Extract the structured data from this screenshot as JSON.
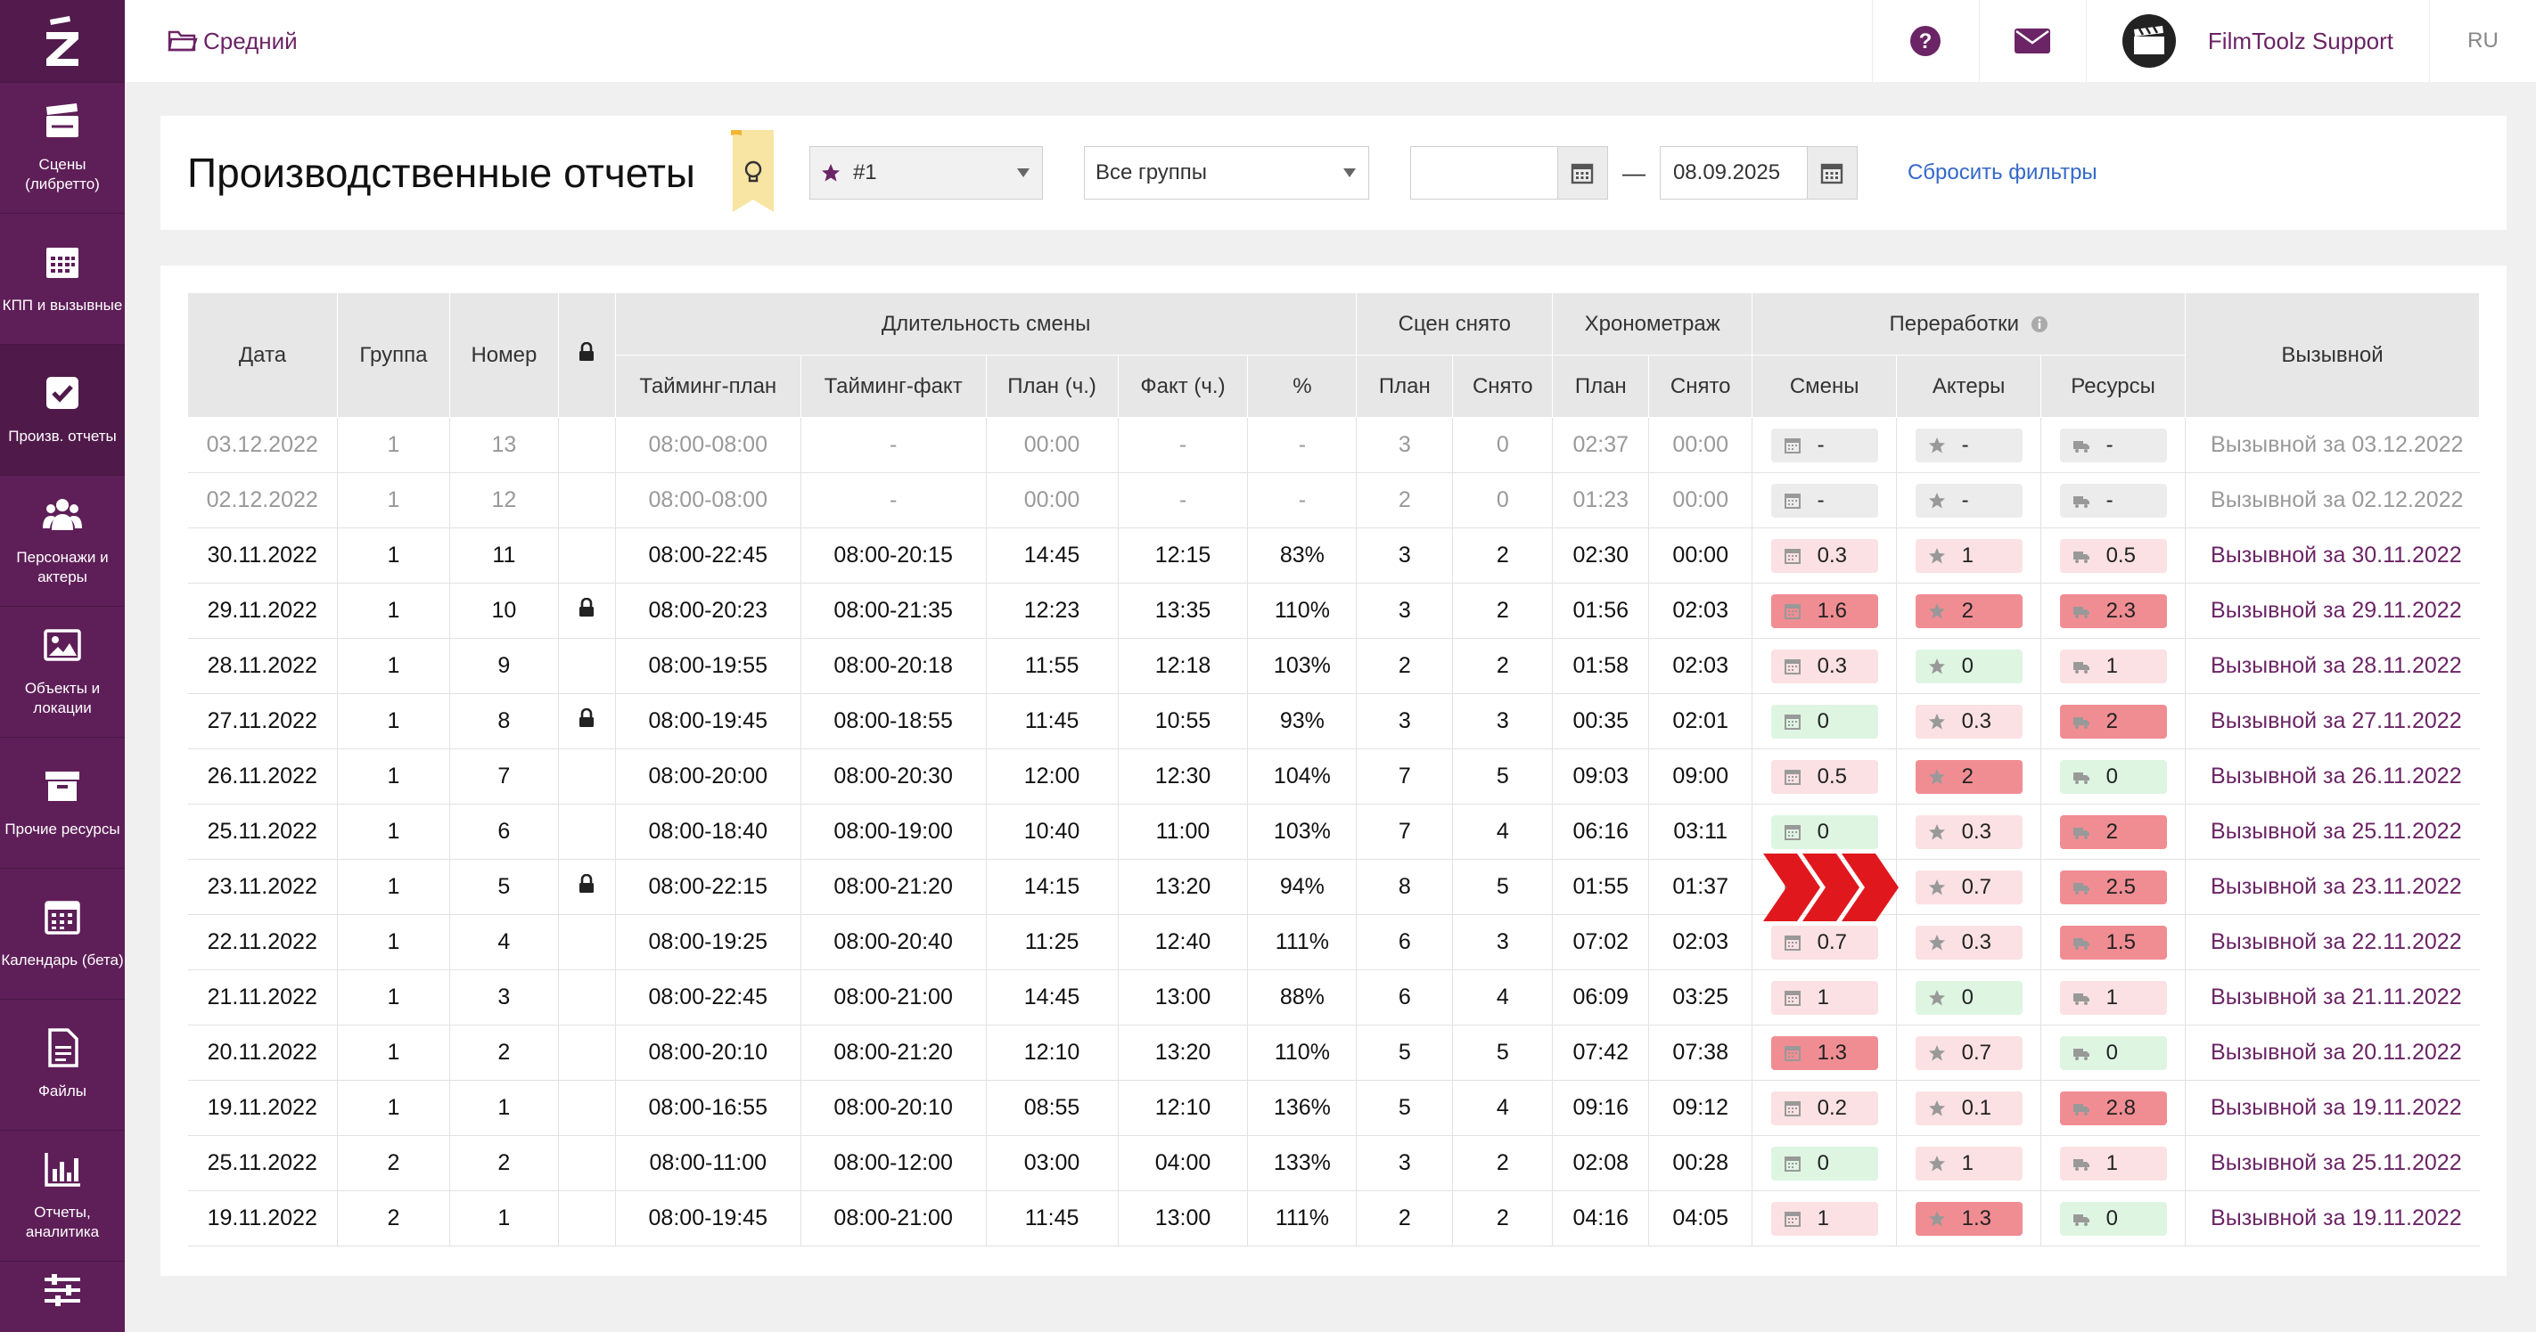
{
  "colors": {
    "brand": "#5e1f58",
    "link": "#6b2465",
    "reset_link": "#3468c9",
    "pill_green": "#def5e2",
    "pill_light_red": "#fbe1e3",
    "pill_red": "#f08d93",
    "pill_gray": "#ececec"
  },
  "sidebar": {
    "logo_icon": "z-logo-icon",
    "items": [
      {
        "label": "Сцены (либретто)",
        "icon": "clapperboard-icon"
      },
      {
        "label": "КПП и вызывные",
        "icon": "calendar-grid-icon"
      },
      {
        "label": "Произв. отчеты",
        "icon": "checkbox-icon",
        "active": true
      },
      {
        "label": "Персонажи и актеры",
        "icon": "people-icon"
      },
      {
        "label": "Объекты и локации",
        "icon": "image-icon"
      },
      {
        "label": "Прочие ресурсы",
        "icon": "box-icon"
      },
      {
        "label": "Календарь (бета)",
        "icon": "calendar-icon"
      },
      {
        "label": "Файлы",
        "icon": "file-icon"
      },
      {
        "label": "Отчеты, аналитика",
        "icon": "bar-chart-icon"
      },
      {
        "label": "",
        "icon": "sliders-icon"
      }
    ]
  },
  "topbar": {
    "crumb": "Средний",
    "user_name": "FilmToolz Support",
    "lang": "RU"
  },
  "header": {
    "title": "Производственные отчеты",
    "select_project": "#1",
    "select_group": "Все группы",
    "date_from": "",
    "date_to": "08.09.2025",
    "dash": "—",
    "reset": "Сбросить фильтры"
  },
  "table": {
    "head1": {
      "date": "Дата",
      "group": "Группа",
      "number": "Номер",
      "shift": "Длительность смены",
      "scenes": "Сцен снято",
      "timing": "Хронометраж",
      "overtime": "Переработки",
      "callsheet": "Вызывной"
    },
    "head2": {
      "plan_timing": "Тайминг-план",
      "fact_timing": "Тайминг-факт",
      "plan_h": "План (ч.)",
      "fact_h": "Факт (ч.)",
      "pct": "%",
      "sc_plan": "План",
      "sc_done": "Снято",
      "tm_plan": "План",
      "tm_done": "Снято",
      "shifts": "Смены",
      "actors": "Актеры",
      "resources": "Ресурсы"
    },
    "rows": [
      {
        "date": "03.12.2022",
        "group": "1",
        "num": "13",
        "lock": false,
        "dim": true,
        "tplan": "08:00-08:00",
        "tfact": "-",
        "hplan": "00:00",
        "hfact": "-",
        "pct": "-",
        "splan": "3",
        "sdone": "0",
        "cplan": "02:37",
        "cdone": "00:00",
        "ot_s": "-",
        "ot_a": "-",
        "ot_r": "-",
        "c_s": "gray",
        "c_a": "gray",
        "c_r": "gray",
        "link": "Вызывной за 03.12.2022"
      },
      {
        "date": "02.12.2022",
        "group": "1",
        "num": "12",
        "lock": false,
        "dim": true,
        "tplan": "08:00-08:00",
        "tfact": "-",
        "hplan": "00:00",
        "hfact": "-",
        "pct": "-",
        "splan": "2",
        "sdone": "0",
        "cplan": "01:23",
        "cdone": "00:00",
        "ot_s": "-",
        "ot_a": "-",
        "ot_r": "-",
        "c_s": "gray",
        "c_a": "gray",
        "c_r": "gray",
        "link": "Вызывной за 02.12.2022"
      },
      {
        "date": "30.11.2022",
        "group": "1",
        "num": "11",
        "lock": false,
        "dim": false,
        "tplan": "08:00-22:45",
        "tfact": "08:00-20:15",
        "hplan": "14:45",
        "hfact": "12:15",
        "pct": "83%",
        "splan": "3",
        "sdone": "2",
        "cplan": "02:30",
        "cdone": "00:00",
        "ot_s": "0.3",
        "ot_a": "1",
        "ot_r": "0.5",
        "c_s": "light",
        "c_a": "light",
        "c_r": "light",
        "link": "Вызывной за 30.11.2022"
      },
      {
        "date": "29.11.2022",
        "group": "1",
        "num": "10",
        "lock": true,
        "dim": false,
        "tplan": "08:00-20:23",
        "tfact": "08:00-21:35",
        "hplan": "12:23",
        "hfact": "13:35",
        "pct": "110%",
        "splan": "3",
        "sdone": "2",
        "cplan": "01:56",
        "cdone": "02:03",
        "ot_s": "1.6",
        "ot_a": "2",
        "ot_r": "2.3",
        "c_s": "red",
        "c_a": "red",
        "c_r": "red",
        "link": "Вызывной за 29.11.2022"
      },
      {
        "date": "28.11.2022",
        "group": "1",
        "num": "9",
        "lock": false,
        "dim": false,
        "tplan": "08:00-19:55",
        "tfact": "08:00-20:18",
        "hplan": "11:55",
        "hfact": "12:18",
        "pct": "103%",
        "splan": "2",
        "sdone": "2",
        "cplan": "01:58",
        "cdone": "02:03",
        "ot_s": "0.3",
        "ot_a": "0",
        "ot_r": "1",
        "c_s": "light",
        "c_a": "green",
        "c_r": "light",
        "link": "Вызывной за 28.11.2022"
      },
      {
        "date": "27.11.2022",
        "group": "1",
        "num": "8",
        "lock": true,
        "dim": false,
        "tplan": "08:00-19:45",
        "tfact": "08:00-18:55",
        "hplan": "11:45",
        "hfact": "10:55",
        "pct": "93%",
        "splan": "3",
        "sdone": "3",
        "cplan": "00:35",
        "cdone": "02:01",
        "ot_s": "0",
        "ot_a": "0.3",
        "ot_r": "2",
        "c_s": "green",
        "c_a": "light",
        "c_r": "red",
        "link": "Вызывной за 27.11.2022"
      },
      {
        "date": "26.11.2022",
        "group": "1",
        "num": "7",
        "lock": false,
        "dim": false,
        "tplan": "08:00-20:00",
        "tfact": "08:00-20:30",
        "hplan": "12:00",
        "hfact": "12:30",
        "pct": "104%",
        "splan": "7",
        "sdone": "5",
        "cplan": "09:03",
        "cdone": "09:00",
        "ot_s": "0.5",
        "ot_a": "2",
        "ot_r": "0",
        "c_s": "light",
        "c_a": "red",
        "c_r": "green",
        "link": "Вызывной за 26.11.2022"
      },
      {
        "date": "25.11.2022",
        "group": "1",
        "num": "6",
        "lock": false,
        "dim": false,
        "tplan": "08:00-18:40",
        "tfact": "08:00-19:00",
        "hplan": "10:40",
        "hfact": "11:00",
        "pct": "103%",
        "splan": "7",
        "sdone": "4",
        "cplan": "06:16",
        "cdone": "03:11",
        "ot_s": "0",
        "ot_a": "0.3",
        "ot_r": "2",
        "c_s": "green",
        "c_a": "light",
        "c_r": "red",
        "link": "Вызывной за 25.11.2022"
      },
      {
        "date": "23.11.2022",
        "group": "1",
        "num": "5",
        "lock": true,
        "dim": false,
        "tplan": "08:00-22:15",
        "tfact": "08:00-21:20",
        "hplan": "14:15",
        "hfact": "13:20",
        "pct": "94%",
        "splan": "8",
        "sdone": "5",
        "cplan": "01:55",
        "cdone": "01:37",
        "ot_s": "",
        "ot_a": "0.7",
        "ot_r": "2.5",
        "c_s": "none",
        "c_a": "light",
        "c_r": "red",
        "link": "Вызывной за 23.11.2022"
      },
      {
        "date": "22.11.2022",
        "group": "1",
        "num": "4",
        "lock": false,
        "dim": false,
        "tplan": "08:00-19:25",
        "tfact": "08:00-20:40",
        "hplan": "11:25",
        "hfact": "12:40",
        "pct": "111%",
        "splan": "6",
        "sdone": "3",
        "cplan": "07:02",
        "cdone": "02:03",
        "ot_s": "0.7",
        "ot_a": "0.3",
        "ot_r": "1.5",
        "c_s": "light",
        "c_a": "light",
        "c_r": "red",
        "link": "Вызывной за 22.11.2022"
      },
      {
        "date": "21.11.2022",
        "group": "1",
        "num": "3",
        "lock": false,
        "dim": false,
        "tplan": "08:00-22:45",
        "tfact": "08:00-21:00",
        "hplan": "14:45",
        "hfact": "13:00",
        "pct": "88%",
        "splan": "6",
        "sdone": "4",
        "cplan": "06:09",
        "cdone": "03:25",
        "ot_s": "1",
        "ot_a": "0",
        "ot_r": "1",
        "c_s": "light",
        "c_a": "green",
        "c_r": "light",
        "link": "Вызывной за 21.11.2022"
      },
      {
        "date": "20.11.2022",
        "group": "1",
        "num": "2",
        "lock": false,
        "dim": false,
        "tplan": "08:00-20:10",
        "tfact": "08:00-21:20",
        "hplan": "12:10",
        "hfact": "13:20",
        "pct": "110%",
        "splan": "5",
        "sdone": "5",
        "cplan": "07:42",
        "cdone": "07:38",
        "ot_s": "1.3",
        "ot_a": "0.7",
        "ot_r": "0",
        "c_s": "red",
        "c_a": "light",
        "c_r": "green",
        "link": "Вызывной за 20.11.2022"
      },
      {
        "date": "19.11.2022",
        "group": "1",
        "num": "1",
        "lock": false,
        "dim": false,
        "tplan": "08:00-16:55",
        "tfact": "08:00-20:10",
        "hplan": "08:55",
        "hfact": "12:10",
        "pct": "136%",
        "splan": "5",
        "sdone": "4",
        "cplan": "09:16",
        "cdone": "09:12",
        "ot_s": "0.2",
        "ot_a": "0.1",
        "ot_r": "2.8",
        "c_s": "light",
        "c_a": "light",
        "c_r": "red",
        "link": "Вызывной за 19.11.2022"
      },
      {
        "date": "25.11.2022",
        "group": "2",
        "num": "2",
        "lock": false,
        "dim": false,
        "tplan": "08:00-11:00",
        "tfact": "08:00-12:00",
        "hplan": "03:00",
        "hfact": "04:00",
        "pct": "133%",
        "splan": "3",
        "sdone": "2",
        "cplan": "02:08",
        "cdone": "00:28",
        "ot_s": "0",
        "ot_a": "1",
        "ot_r": "1",
        "c_s": "green",
        "c_a": "light",
        "c_r": "light",
        "link": "Вызывной за 25.11.2022"
      },
      {
        "date": "19.11.2022",
        "group": "2",
        "num": "1",
        "lock": false,
        "dim": false,
        "tplan": "08:00-19:45",
        "tfact": "08:00-21:00",
        "hplan": "11:45",
        "hfact": "13:00",
        "pct": "111%",
        "splan": "2",
        "sdone": "2",
        "cplan": "04:16",
        "cdone": "04:05",
        "ot_s": "1",
        "ot_a": "1.3",
        "ot_r": "0",
        "c_s": "light",
        "c_a": "red",
        "c_r": "green",
        "link": "Вызывной за 19.11.2022"
      }
    ]
  }
}
